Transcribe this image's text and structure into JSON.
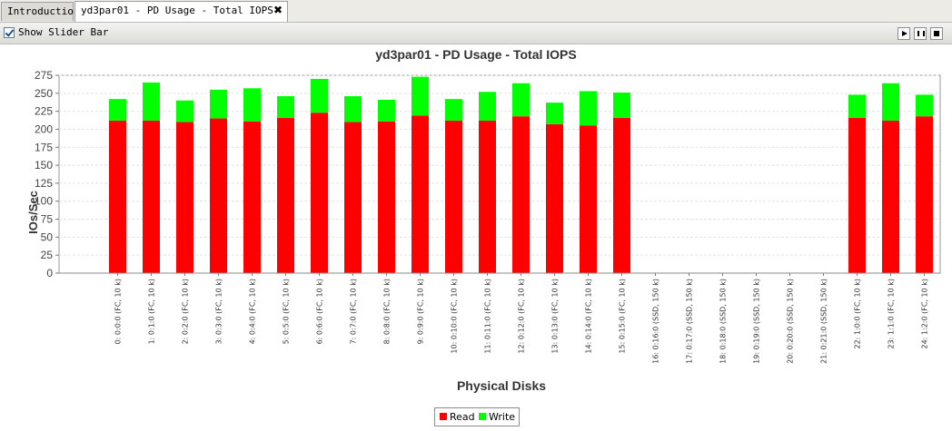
{
  "tabs": [
    {
      "label": "Introduction",
      "active": false
    },
    {
      "label": "yd3par01 - PD Usage - Total IOPS",
      "active": true
    }
  ],
  "toolbar": {
    "slider_label": "Show Slider Bar",
    "slider_checked": true,
    "controls": [
      "play-icon",
      "pause-icon",
      "stop-icon"
    ]
  },
  "colors": {
    "read": "#ff0000",
    "write": "#00ff00"
  },
  "chart_data": {
    "type": "bar",
    "stacked": true,
    "title": "yd3par01 - PD Usage - Total IOPS",
    "xlabel": "Physical Disks",
    "ylabel": "IOs/Sec",
    "ylim": [
      0,
      275
    ],
    "yticks": [
      0,
      25,
      50,
      75,
      100,
      125,
      150,
      175,
      200,
      225,
      250,
      275
    ],
    "grid": true,
    "legend_position": "bottom",
    "categories": [
      "0: 0:0:0 (FC, 10 k)",
      "1: 0:1:0 (FC, 10 k)",
      "2: 0:2:0 (FC, 10 k)",
      "3: 0:3:0 (FC, 10 k)",
      "4: 0:4:0 (FC, 10 k)",
      "5: 0:5:0 (FC, 10 k)",
      "6: 0:6:0 (FC, 10 k)",
      "7: 0:7:0 (FC, 10 k)",
      "8: 0:8:0 (FC, 10 k)",
      "9: 0:9:0 (FC, 10 k)",
      "10: 0:10:0 (FC, 10 k)",
      "11: 0:11:0 (FC, 10 k)",
      "12: 0:12:0 (FC, 10 k)",
      "13: 0:13:0 (FC, 10 k)",
      "14: 0:14:0 (FC, 10 k)",
      "15: 0:15:0 (FC, 10 k)",
      "16: 0:16:0 (SSD, 150 k)",
      "17: 0:17:0 (SSD, 150 k)",
      "18: 0:18:0 (SSD, 150 k)",
      "19: 0:19:0 (SSD, 150 k)",
      "20: 0:20:0 (SSD, 150 k)",
      "21: 0:21:0 (SSD, 150 k)",
      "22: 1:0:0 (FC, 10 k)",
      "23: 1:1:0 (FC, 10 k)",
      "24: 1:2:0 (FC, 10 k)"
    ],
    "series": [
      {
        "name": "Read",
        "values": [
          212,
          212,
          210,
          215,
          211,
          216,
          223,
          210,
          211,
          219,
          212,
          212,
          218,
          207,
          205,
          216,
          0,
          0,
          0,
          0,
          0,
          0,
          216,
          212,
          218
        ]
      },
      {
        "name": "Write",
        "values": [
          30,
          53,
          30,
          40,
          46,
          30,
          47,
          36,
          30,
          54,
          30,
          40,
          46,
          30,
          48,
          35,
          0,
          0,
          0,
          0,
          0,
          0,
          32,
          52,
          30
        ]
      }
    ]
  }
}
